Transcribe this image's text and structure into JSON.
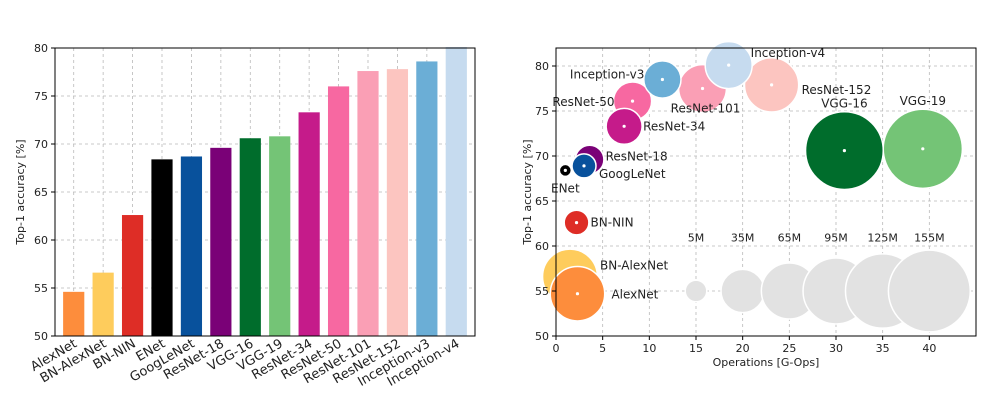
{
  "chart_data": [
    {
      "type": "bar",
      "title": "",
      "xlabel": "",
      "ylabel": "Top-1 accuracy [%]",
      "ylim": [
        50,
        80
      ],
      "yticks": [
        50,
        55,
        60,
        65,
        70,
        75,
        80
      ],
      "grid": true,
      "categories": [
        "AlexNet",
        "BN-AlexNet",
        "BN-NIN",
        "ENet",
        "GoogLeNet",
        "ResNet-18",
        "VGG-16",
        "VGG-19",
        "ResNet-34",
        "ResNet-50",
        "ResNet-101",
        "ResNet-152",
        "Inception-v3",
        "Inception-v4"
      ],
      "values": [
        54.6,
        56.6,
        62.6,
        68.4,
        68.7,
        69.6,
        70.6,
        70.8,
        73.3,
        76.0,
        77.6,
        77.8,
        78.6,
        80.1
      ],
      "colors": [
        "#fd8d3c",
        "#fecc5c",
        "#de2d26",
        "#000000",
        "#08519c",
        "#7a0177",
        "#006d2c",
        "#74c476",
        "#c51b8a",
        "#f768a1",
        "#fa9fb5",
        "#fcc5c0",
        "#6baed6",
        "#c6dbef"
      ]
    },
    {
      "type": "scatter",
      "title": "",
      "xlabel": "Operations [G-Ops]",
      "ylabel": "Top-1 accuracy [%]",
      "xlim": [
        0,
        45
      ],
      "ylim": [
        50,
        82
      ],
      "xticks": [
        0,
        5,
        10,
        15,
        20,
        25,
        30,
        35,
        40
      ],
      "yticks": [
        50,
        55,
        60,
        65,
        70,
        75,
        80
      ],
      "grid": true,
      "points": [
        {
          "name": "AlexNet",
          "x": 2.3,
          "y": 54.7,
          "params_m": 61,
          "color": "#fd8d3c",
          "label": "AlexNet"
        },
        {
          "name": "BN-AlexNet",
          "x": 1.5,
          "y": 56.6,
          "params_m": 62,
          "color": "#fecc5c",
          "label": "BN-AlexNet"
        },
        {
          "name": "BN-NIN",
          "x": 2.2,
          "y": 62.6,
          "params_m": 7.6,
          "color": "#de2d26",
          "label": "BN-NIN"
        },
        {
          "name": "ENet",
          "x": 1.0,
          "y": 68.4,
          "params_m": 0.37,
          "color": "#000000",
          "label": "ENet"
        },
        {
          "name": "GoogLeNet",
          "x": 3.0,
          "y": 68.9,
          "params_m": 7,
          "color": "#08519c",
          "label": "GoogLeNet"
        },
        {
          "name": "ResNet-18",
          "x": 3.6,
          "y": 69.6,
          "params_m": 11.7,
          "color": "#7a0177",
          "label": "ResNet-18"
        },
        {
          "name": "VGG-16",
          "x": 30.9,
          "y": 70.6,
          "params_m": 138,
          "color": "#006d2c",
          "label": "VGG-16"
        },
        {
          "name": "VGG-19",
          "x": 39.3,
          "y": 70.8,
          "params_m": 144,
          "color": "#74c476",
          "label": "VGG-19"
        },
        {
          "name": "ResNet-34",
          "x": 7.3,
          "y": 73.3,
          "params_m": 21.8,
          "color": "#c51b8a",
          "label": "ResNet-34"
        },
        {
          "name": "ResNet-50",
          "x": 8.2,
          "y": 76.1,
          "params_m": 25.5,
          "color": "#f768a1",
          "label": "ResNet-50"
        },
        {
          "name": "ResNet-101",
          "x": 15.7,
          "y": 77.5,
          "params_m": 44.5,
          "color": "#fa9fb5",
          "label": "ResNet-101"
        },
        {
          "name": "ResNet-152",
          "x": 23.1,
          "y": 77.9,
          "params_m": 60.2,
          "color": "#fcc5c0",
          "label": "ResNet-152"
        },
        {
          "name": "Inception-v3",
          "x": 11.4,
          "y": 78.5,
          "params_m": 23.8,
          "color": "#6baed6",
          "label": "Inception-v3"
        },
        {
          "name": "Inception-v4",
          "x": 18.5,
          "y": 80.1,
          "params_m": 42.7,
          "color": "#c6dbef",
          "label": "Inception-v4"
        }
      ],
      "size_legend": {
        "y": 55,
        "color": "#e2e2e2",
        "items": [
          {
            "label": "5M",
            "x": 15,
            "params_m": 5
          },
          {
            "label": "35M",
            "x": 20,
            "params_m": 35
          },
          {
            "label": "65M",
            "x": 25,
            "params_m": 65
          },
          {
            "label": "95M",
            "x": 30,
            "params_m": 95
          },
          {
            "label": "125M",
            "x": 35,
            "params_m": 125
          },
          {
            "label": "155M",
            "x": 40,
            "params_m": 155
          }
        ]
      }
    }
  ]
}
